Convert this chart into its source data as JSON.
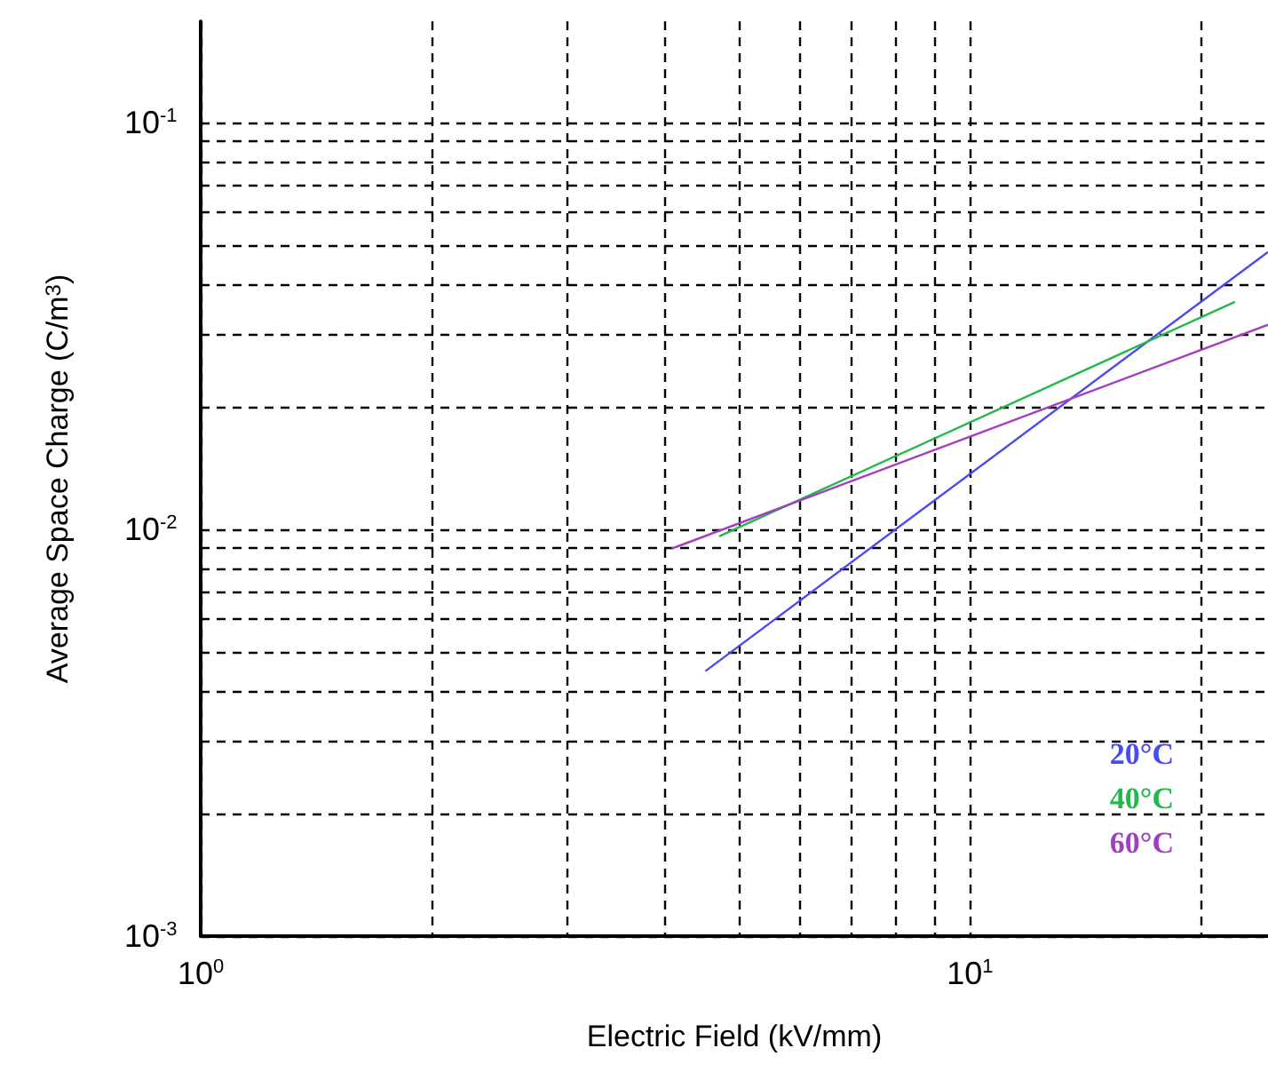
{
  "chart_data": {
    "type": "line",
    "xlabel": "Electric Field (kV/mm)",
    "ylabel": "Average Space Charge (C/m$^{3}$)",
    "log": "xy",
    "grid": true,
    "legend": "bottom right",
    "marker": "none",
    "line_style": "solid",
    "xlim": [
      1,
      24.4
    ],
    "ylim": [
      0.001,
      0.177
    ],
    "xticks": [
      {
        "value": 1,
        "label": "10$^{0}$"
      },
      {
        "value": 2,
        "label": null
      },
      {
        "value": 3,
        "label": null
      },
      {
        "value": 4,
        "label": null
      },
      {
        "value": 5,
        "label": null
      },
      {
        "value": 6,
        "label": null
      },
      {
        "value": 7,
        "label": null
      },
      {
        "value": 8,
        "label": null
      },
      {
        "value": 9,
        "label": null
      },
      {
        "value": 10,
        "label": "10$^{1}$"
      },
      {
        "value": 20,
        "label": null
      }
    ],
    "yticks": [
      {
        "value": 0.001,
        "label": "10$^{-3}$"
      },
      {
        "value": 0.002,
        "label": null
      },
      {
        "value": 0.003,
        "label": null
      },
      {
        "value": 0.004,
        "label": null
      },
      {
        "value": 0.005,
        "label": null
      },
      {
        "value": 0.006,
        "label": null
      },
      {
        "value": 0.007,
        "label": null
      },
      {
        "value": 0.008,
        "label": null
      },
      {
        "value": 0.009,
        "label": null
      },
      {
        "value": 0.01,
        "label": "10$^{-2}$"
      },
      {
        "value": 0.02,
        "label": null
      },
      {
        "value": 0.03,
        "label": null
      },
      {
        "value": 0.04,
        "label": null
      },
      {
        "value": 0.05,
        "label": null
      },
      {
        "value": 0.06,
        "label": null
      },
      {
        "value": 0.07,
        "label": null
      },
      {
        "value": 0.08,
        "label": null
      },
      {
        "value": 0.09,
        "label": null
      },
      {
        "value": 0.1,
        "label": "10$^{-1}$"
      }
    ],
    "series": [
      {
        "name": "20°C",
        "color": "#4a4af0",
        "x": [
          4.53,
          24.4
        ],
        "values": [
          0.00448,
          0.048
        ]
      },
      {
        "name": "40°C",
        "color": "#22b84a",
        "x": [
          4.72,
          22.1
        ],
        "values": [
          0.0096,
          0.0362
        ]
      },
      {
        "name": "60°C",
        "color": "#a040c0",
        "x": [
          4.09,
          24.4
        ],
        "values": [
          0.00895,
          0.0318
        ]
      }
    ]
  }
}
